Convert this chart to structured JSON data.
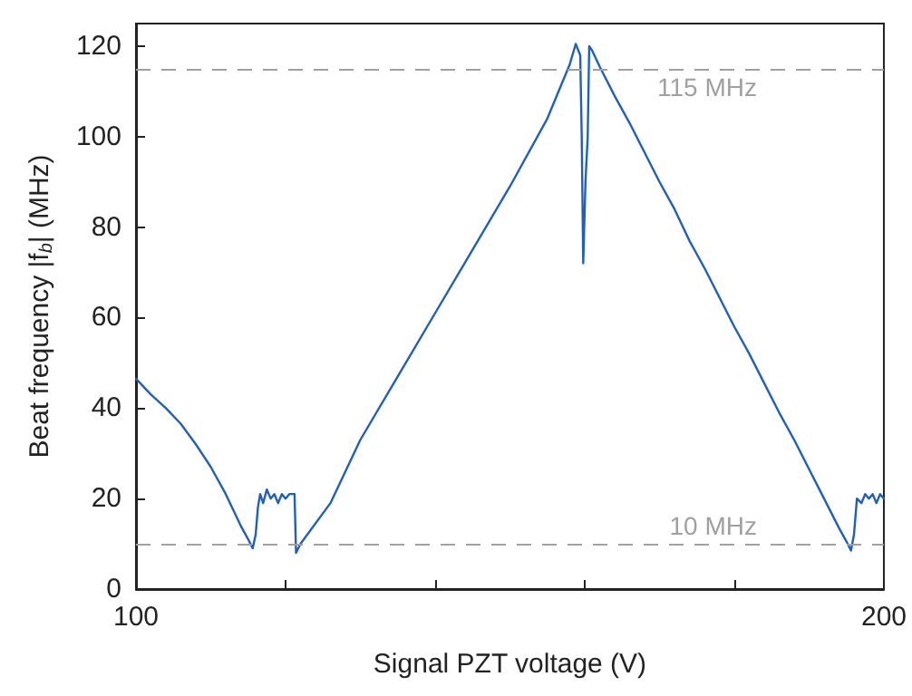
{
  "chart_data": {
    "type": "line",
    "xlabel": "Signal PZT voltage (V)",
    "ylabel": "Beat frequency |f$_{b}$| (MHz)",
    "xlim": [
      100,
      200
    ],
    "xticks": [
      100,
      {
        "value": 120,
        "label": null
      },
      {
        "value": 140,
        "label": null
      },
      {
        "value": 160,
        "label": null
      },
      {
        "value": 180,
        "label": null
      },
      200
    ],
    "ylim": [
      0,
      125
    ],
    "yticks": [
      0,
      20,
      40,
      60,
      80,
      100,
      120
    ],
    "grid": false,
    "marker": "none",
    "line_style": "solid",
    "ref_lines": [
      {
        "axis": "y",
        "value": 115,
        "label": "115 MHz",
        "color": "#a0a0a0",
        "line_style": "dashed"
      },
      {
        "axis": "y",
        "value": 10,
        "label": "10 MHz",
        "color": "#a0a0a0",
        "line_style": "dashed"
      }
    ],
    "series": [
      {
        "color": "#1f5fbf",
        "x": [
          100,
          102,
          104,
          106,
          108,
          110,
          112,
          114,
          115,
          115.6,
          116,
          116.3,
          116.6,
          117,
          117.5,
          118,
          118.5,
          119,
          119.5,
          120,
          120.5,
          121.2,
          121.4,
          122,
          126,
          130,
          135,
          140,
          145,
          150,
          155,
          158,
          158.8,
          159.4,
          159.6,
          159.8,
          160.1,
          160.4,
          160.6,
          161,
          162,
          164,
          166,
          168,
          170,
          172,
          174,
          176,
          178,
          180,
          182,
          184,
          186,
          188,
          190,
          192,
          194,
          195,
          195.6,
          196,
          196.4,
          197,
          197.5,
          198,
          198.5,
          199,
          199.5,
          200
        ],
        "values": [
          46.5,
          43,
          40,
          36.5,
          32,
          27,
          21,
          14,
          11,
          9,
          12,
          18,
          21,
          19,
          22,
          20,
          21,
          19,
          21,
          20,
          21,
          21,
          8,
          10,
          19,
          33,
          47,
          61,
          75,
          89,
          104,
          116,
          120.5,
          118,
          100,
          72,
          90,
          100,
          120,
          119,
          115.5,
          109,
          103,
          96.5,
          90,
          84,
          77,
          71,
          64.5,
          58,
          52,
          45.5,
          39,
          33,
          26.5,
          20,
          13.5,
          10.5,
          8.5,
          12,
          20,
          19,
          21,
          20,
          21,
          19,
          21,
          20
        ]
      }
    ]
  }
}
